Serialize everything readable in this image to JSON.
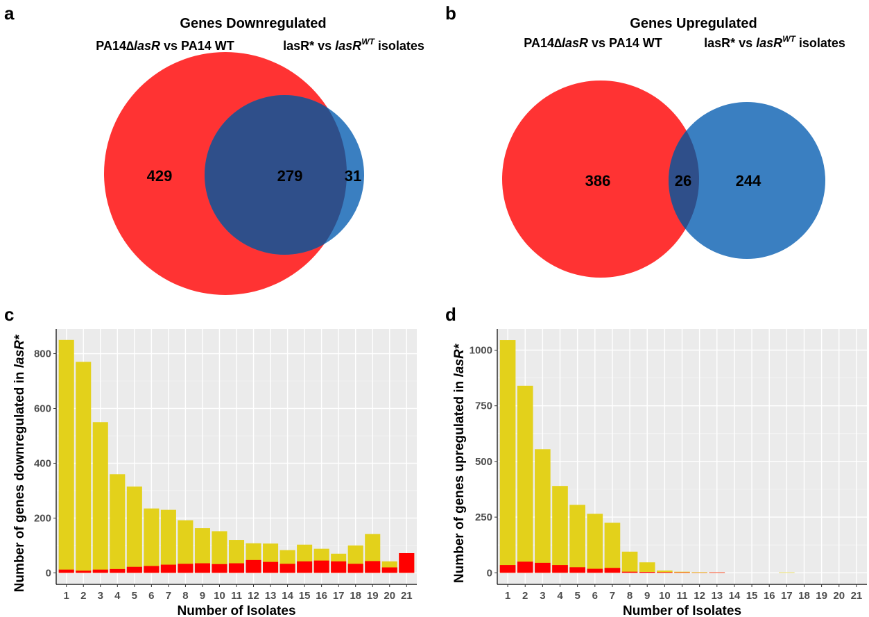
{
  "panels": {
    "a": "a",
    "b": "b",
    "c": "c",
    "d": "d"
  },
  "venn_a": {
    "title": "Genes Downregulated",
    "left_label_prefix": "PA14∆",
    "left_label_italic": "lasR",
    "left_label_suffix": " vs PA14 WT",
    "right_label_prefix": "lasR* vs ",
    "right_label_italic": "lasR",
    "right_label_sup": "WT",
    "right_label_suffix": " isolates",
    "left_only": "429",
    "overlap": "279",
    "right_only": "31",
    "colors": {
      "left": "#ff3333",
      "right": "#3a7fc1",
      "overlap": "#2f4f8a"
    }
  },
  "venn_b": {
    "title": "Genes Upregulated",
    "left_label_prefix": "PA14∆",
    "left_label_italic": "lasR",
    "left_label_suffix": " vs PA14 WT",
    "right_label_prefix": "lasR* vs ",
    "right_label_italic": "lasR",
    "right_label_sup": "WT",
    "right_label_suffix": " isolates",
    "left_only": "386",
    "overlap": "26",
    "right_only": "244",
    "colors": {
      "left": "#ff3333",
      "right": "#3a7fc1",
      "overlap": "#2f4f8a"
    }
  },
  "chart_data": [
    {
      "type": "bar",
      "panel": "c",
      "stacked": true,
      "categories": [
        "1",
        "2",
        "3",
        "4",
        "5",
        "6",
        "7",
        "8",
        "9",
        "10",
        "11",
        "12",
        "13",
        "14",
        "15",
        "16",
        "17",
        "18",
        "19",
        "20",
        "21"
      ],
      "series": [
        {
          "values": [
            850,
            770,
            550,
            360,
            315,
            235,
            230,
            192,
            163,
            152,
            120,
            108,
            107,
            83,
            103,
            88,
            70,
            100,
            142,
            42,
            72
          ],
          "color": "#e3d11b"
        },
        {
          "values": [
            12,
            8,
            12,
            14,
            22,
            25,
            30,
            33,
            35,
            32,
            35,
            47,
            40,
            33,
            42,
            45,
            42,
            33,
            43,
            20,
            72
          ],
          "color": "#ff0000"
        }
      ],
      "xlabel": "Number of Isolates",
      "ylabel_prefix": "Number of genes downregulated in ",
      "ylabel_italic": "lasR*",
      "yticks": [
        0,
        200,
        400,
        600,
        800
      ],
      "ylim": [
        -42,
        890
      ],
      "grid": true
    },
    {
      "type": "bar",
      "panel": "d",
      "stacked": true,
      "categories": [
        "1",
        "2",
        "3",
        "4",
        "5",
        "6",
        "7",
        "8",
        "9",
        "10",
        "11",
        "12",
        "13",
        "14",
        "15",
        "16",
        "17",
        "18",
        "19",
        "20",
        "21"
      ],
      "series": [
        {
          "values": [
            1045,
            840,
            555,
            390,
            305,
            265,
            225,
            95,
            47,
            10,
            5,
            3,
            2,
            0,
            0,
            0,
            2,
            0,
            0,
            0,
            0
          ],
          "color": "#e3d11b"
        },
        {
          "values": [
            35,
            50,
            45,
            35,
            25,
            18,
            22,
            5,
            4,
            3,
            2,
            1,
            2,
            0,
            0,
            0,
            0,
            0,
            0,
            0,
            0
          ],
          "color": "#ff0000"
        }
      ],
      "xlabel": "Number of Isolates",
      "ylabel_prefix": "Number of genes upregulated in ",
      "ylabel_italic": "lasR*",
      "yticks": [
        0,
        250,
        500,
        750,
        1000
      ],
      "ylim": [
        -52,
        1095
      ],
      "grid": true
    }
  ]
}
